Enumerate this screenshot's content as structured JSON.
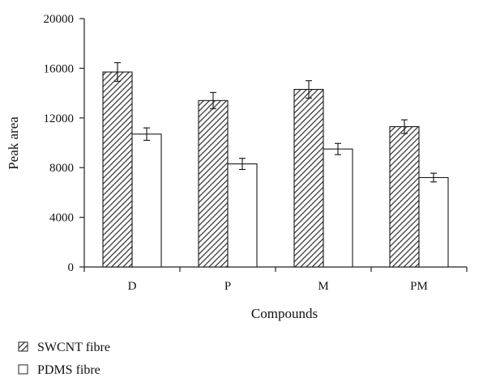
{
  "chart_data": {
    "type": "bar",
    "title": "",
    "xlabel": "Compounds",
    "ylabel": "Peak area",
    "categories": [
      "D",
      "P",
      "M",
      "PM"
    ],
    "ylim": [
      0,
      20000
    ],
    "yticks": [
      "0",
      "4000",
      "8000",
      "12000",
      "16000",
      "20000"
    ],
    "grid": false,
    "legend_position": "bottom-left",
    "series": [
      {
        "name": "SWCNT fibre",
        "values": [
          15700,
          13400,
          14300,
          11300
        ],
        "errors": [
          750,
          650,
          700,
          550
        ],
        "fill": "hatched",
        "color": "#333333"
      },
      {
        "name": "PDMS fibre",
        "values": [
          10700,
          8300,
          9500,
          7200
        ],
        "errors": [
          500,
          450,
          450,
          350
        ],
        "fill": "white",
        "color": "#222222"
      }
    ]
  }
}
